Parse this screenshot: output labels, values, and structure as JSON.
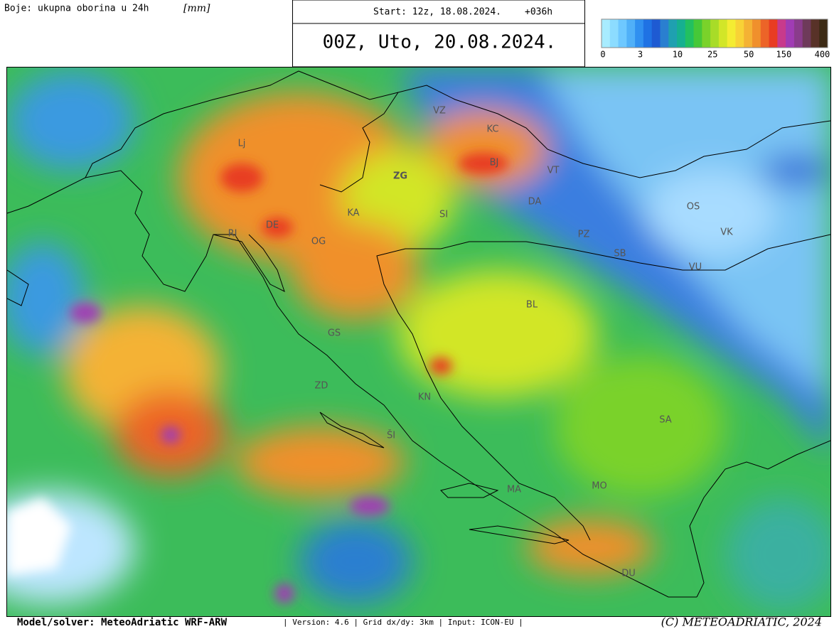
{
  "header": {
    "colors_label": "Boje: ukupna oborina u 24h",
    "unit": "[mm]",
    "start": "Start: 12z, 18.08.2024.",
    "lead": "+036h",
    "valid": "00Z, Uto, 20.08.2024."
  },
  "legend": {
    "colors": [
      "#a8ecff",
      "#8cdcff",
      "#6ec8ff",
      "#50b0f8",
      "#3090f0",
      "#1f72e4",
      "#1e5ad2",
      "#2a7fd0",
      "#1fa0b0",
      "#16b090",
      "#22c060",
      "#46c838",
      "#7ad22a",
      "#a8dc28",
      "#d2e628",
      "#f4ec32",
      "#f8d236",
      "#f4b234",
      "#f0902c",
      "#ec6428",
      "#e83c22",
      "#c83a8c",
      "#a03cb4",
      "#8a3c8c",
      "#6e3a5a",
      "#583228",
      "#3c2a14"
    ],
    "ticks": [
      "0",
      "3",
      "10",
      "25",
      "50",
      "150",
      "400"
    ]
  },
  "cities": [
    "Lj",
    "ZG",
    "VZ",
    "KC",
    "BJ",
    "VT",
    "DA",
    "KA",
    "SI",
    "OS",
    "VK",
    "PZ",
    "SB",
    "RI",
    "DE",
    "OG",
    "VU",
    "BL",
    "GS",
    "ZD",
    "KN",
    "SA",
    "ŠI",
    "MO",
    "MA",
    "DU"
  ],
  "footer": {
    "model": "Model/solver: MeteoAdriatic WRF-ARW",
    "info": "| Version: 4.6 | Grid dx/dy: 3km | Input: ICON-EU |",
    "copyright": "(C) METEOADRIATIC, 2024"
  }
}
